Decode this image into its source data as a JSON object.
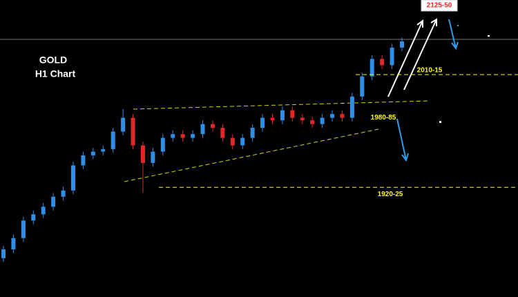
{
  "chart_data": {
    "type": "candlestick",
    "title": "GOLD",
    "subtitle": "H1 Chart",
    "ylim": [
      1835,
      2072
    ],
    "up_color": "#2f8fe6",
    "down_color": "#e02828",
    "open": [
      1866,
      1873,
      1882,
      1896,
      1901,
      1907,
      1915,
      1920,
      1940,
      1948,
      1951,
      1953,
      1967,
      1978,
      1956,
      1942,
      1951,
      1962,
      1965,
      1962,
      1965,
      1973,
      1970,
      1962,
      1956,
      1962,
      1970,
      1978,
      1976,
      1984,
      1978,
      1976,
      1973,
      1978,
      1981,
      1978,
      1995,
      2011,
      2025,
      2020,
      2034
    ],
    "high": [
      1876,
      1885,
      1899,
      1904,
      1910,
      1918,
      1923,
      1943,
      1951,
      1954,
      1956,
      1970,
      1985,
      1981,
      1959,
      1954,
      1965,
      1968,
      1968,
      1968,
      1976,
      1976,
      1973,
      1965,
      1965,
      1973,
      1981,
      1981,
      1987,
      1987,
      1981,
      1979,
      1981,
      1984,
      1984,
      1998,
      2014,
      2028,
      2028,
      2037,
      2042
    ],
    "low": [
      1863,
      1870,
      1879,
      1893,
      1898,
      1904,
      1912,
      1917,
      1937,
      1945,
      1948,
      1950,
      1964,
      1953,
      1918,
      1939,
      1948,
      1959,
      1959,
      1959,
      1962,
      1967,
      1959,
      1953,
      1953,
      1959,
      1967,
      1973,
      1973,
      1975,
      1973,
      1970,
      1970,
      1975,
      1975,
      1975,
      1992,
      2008,
      2017,
      2017,
      2031
    ],
    "close": [
      1873,
      1882,
      1896,
      1901,
      1907,
      1915,
      1920,
      1940,
      1948,
      1951,
      1953,
      1967,
      1978,
      1956,
      1942,
      1951,
      1962,
      1965,
      1962,
      1965,
      1973,
      1970,
      1962,
      1956,
      1962,
      1970,
      1978,
      1976,
      1984,
      1978,
      1976,
      1973,
      1978,
      1981,
      1978,
      1995,
      2011,
      2025,
      2020,
      2034,
      2039
    ],
    "annotations": [
      {
        "label": "2125-50",
        "value": 2137.5,
        "color": "#ff2020"
      },
      {
        "label": "2010-15",
        "value": 2012.5,
        "color": "#ffff00"
      },
      {
        "label": "1980-85",
        "value": 1982.5,
        "color": "#ffff00"
      },
      {
        "label": "1920-25",
        "value": 1922.5,
        "color": "#ffff00"
      }
    ]
  }
}
